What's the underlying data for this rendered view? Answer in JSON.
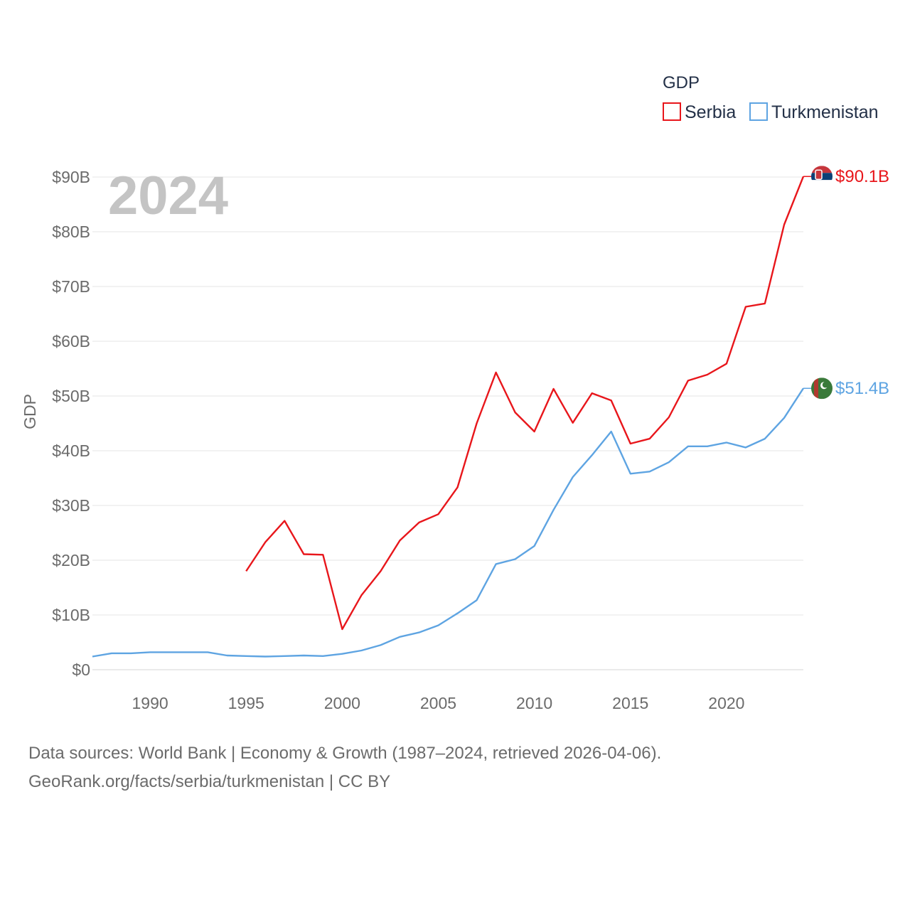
{
  "chart_data": {
    "type": "line",
    "title": "",
    "year_label": "2024",
    "ylabel": "GDP",
    "xlabel": "",
    "xlim": [
      1987,
      2024
    ],
    "ylim": [
      0,
      90
    ],
    "x_ticks": [
      1990,
      1995,
      2000,
      2005,
      2010,
      2015,
      2020
    ],
    "y_ticks": [
      0,
      10,
      20,
      30,
      40,
      50,
      60,
      70,
      80,
      90
    ],
    "y_tick_labels": [
      "$0",
      "$10B",
      "$20B",
      "$30B",
      "$40B",
      "$50B",
      "$60B",
      "$70B",
      "$80B",
      "$90B"
    ],
    "legend": {
      "title": "GDP",
      "position": "top-right"
    },
    "grid": true,
    "series": [
      {
        "name": "Serbia",
        "color": "#e8161b",
        "end_label": "$90.1B",
        "flag": "serbia-flag",
        "x": [
          1995,
          1996,
          1997,
          1998,
          1999,
          2000,
          2001,
          2002,
          2003,
          2004,
          2005,
          2006,
          2007,
          2008,
          2009,
          2010,
          2011,
          2012,
          2013,
          2014,
          2015,
          2016,
          2017,
          2018,
          2019,
          2020,
          2021,
          2022,
          2023,
          2024
        ],
        "values": [
          18.0,
          23.3,
          27.2,
          21.1,
          21.0,
          7.4,
          13.6,
          18.0,
          23.6,
          26.9,
          28.4,
          33.3,
          45.0,
          54.3,
          47.0,
          43.5,
          51.3,
          45.1,
          50.5,
          49.2,
          41.3,
          42.2,
          46.1,
          52.8,
          53.9,
          55.9,
          66.3,
          66.9,
          81.3,
          90.1
        ]
      },
      {
        "name": "Turkmenistan",
        "color": "#5ea4e2",
        "end_label": "$51.4B",
        "flag": "turkmenistan-flag",
        "x": [
          1987,
          1988,
          1989,
          1990,
          1991,
          1992,
          1993,
          1994,
          1995,
          1996,
          1997,
          1998,
          1999,
          2000,
          2001,
          2002,
          2003,
          2004,
          2005,
          2006,
          2007,
          2008,
          2009,
          2010,
          2011,
          2012,
          2013,
          2014,
          2015,
          2016,
          2017,
          2018,
          2019,
          2020,
          2021,
          2022,
          2023,
          2024
        ],
        "values": [
          2.4,
          3.0,
          3.0,
          3.2,
          3.2,
          3.2,
          3.2,
          2.6,
          2.5,
          2.4,
          2.5,
          2.6,
          2.5,
          2.9,
          3.5,
          4.5,
          6.0,
          6.8,
          8.1,
          10.3,
          12.7,
          19.3,
          20.2,
          22.6,
          29.2,
          35.2,
          39.2,
          43.5,
          35.8,
          36.2,
          37.9,
          40.8,
          40.8,
          41.5,
          40.6,
          42.2,
          46.0,
          51.4
        ]
      }
    ]
  },
  "footer": {
    "line1": "Data sources: World Bank | Economy & Growth (1987–2024, retrieved 2026-04-06).",
    "line2": "GeoRank.org/facts/serbia/turkmenistan | CC BY"
  }
}
